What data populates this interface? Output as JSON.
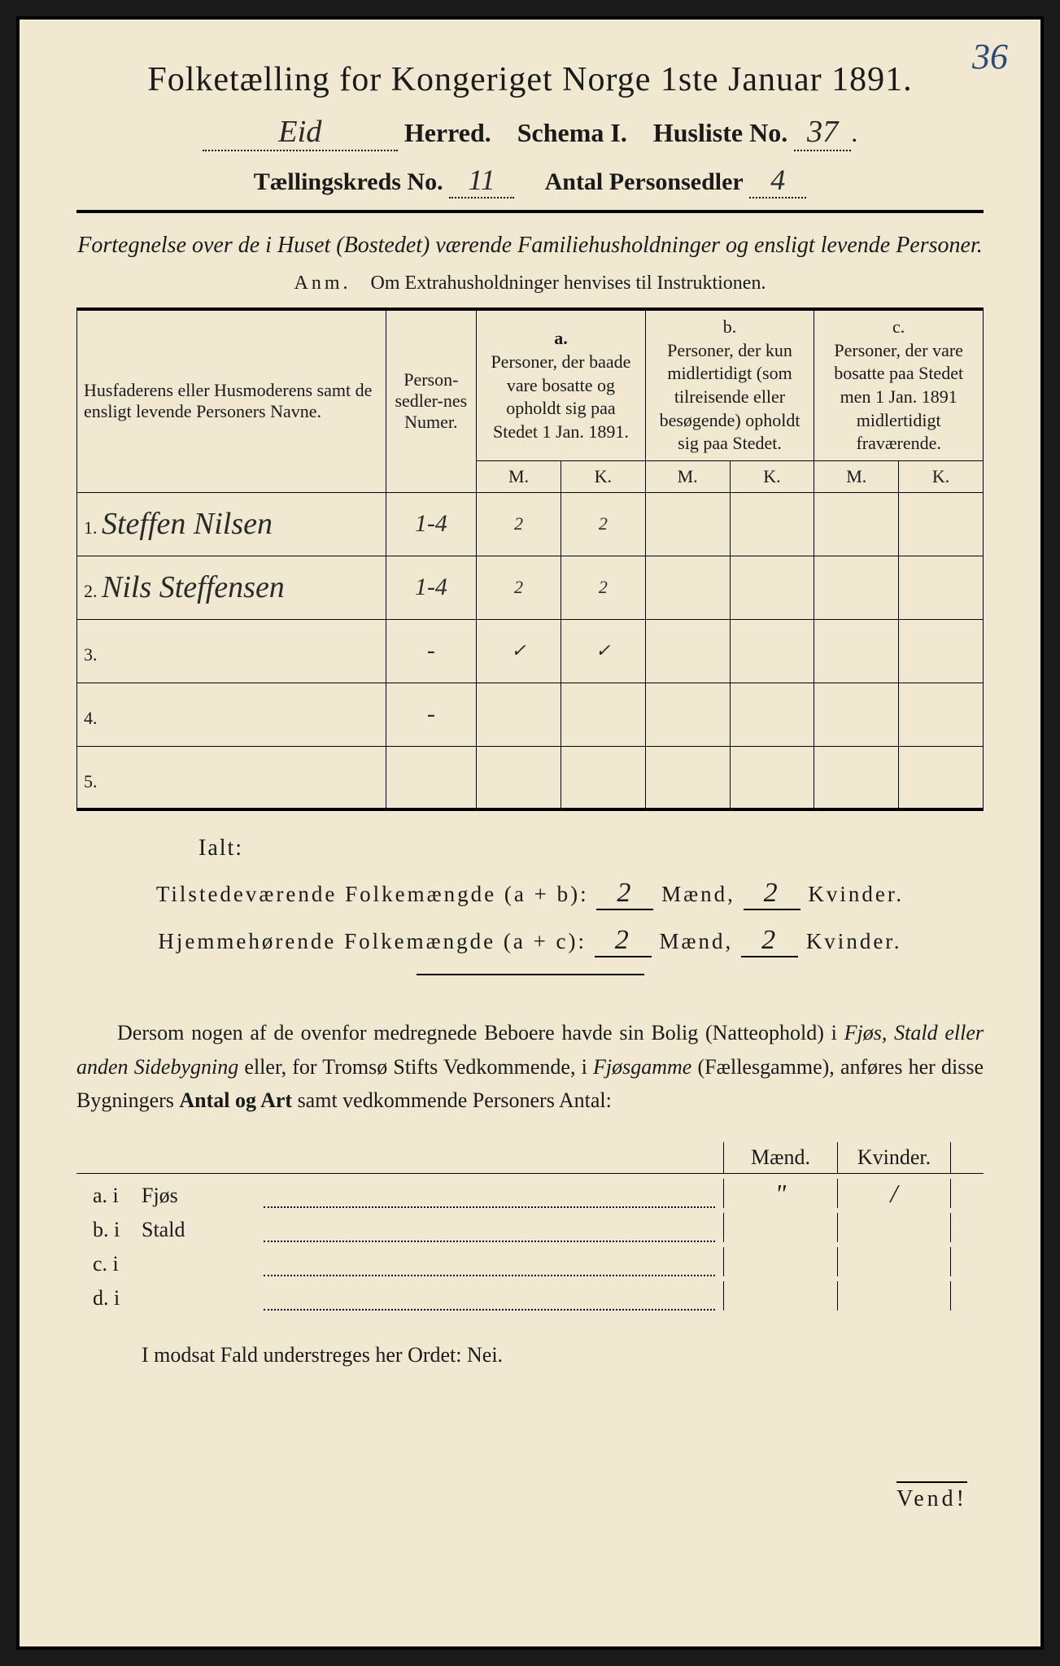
{
  "pageNumberHandwritten": "36",
  "title": "Folketælling for Kongeriget Norge 1ste Januar 1891.",
  "herredValue": "Eid",
  "herredLabel": "Herred.",
  "schemaLabel": "Schema I.",
  "huslisteLabel": "Husliste No.",
  "huslisteValue": "37",
  "kredsLabel": "Tællingskreds No.",
  "kredsValue": "11",
  "antalLabel": "Antal Personsedler",
  "antalValue": "4",
  "fortegnelse": "Fortegnelse over de i Huset (Bostedet) værende Familiehusholdninger og ensligt levende Personer.",
  "anmPrefix": "Anm.",
  "anmText": "Om Extrahusholdninger henvises til Instruktionen.",
  "headers": {
    "names": "Husfaderens eller Husmoderens samt de ensligt levende Personers Navne.",
    "numer": "Person-sedler-nes Numer.",
    "a_label": "a.",
    "a_text": "Personer, der baade vare bosatte og opholdt sig paa Stedet 1 Jan. 1891.",
    "b_label": "b.",
    "b_text": "Personer, der kun midlertidigt (som tilreisende eller besøgende) opholdt sig paa Stedet.",
    "c_label": "c.",
    "c_text": "Personer, der vare bosatte paa Stedet men 1 Jan. 1891 midlertidigt fraværende.",
    "M": "M.",
    "K": "K."
  },
  "rows": [
    {
      "n": "1.",
      "name": "Steffen Nilsen",
      "numer": "1-4",
      "aM": "2",
      "aK": "2",
      "bM": "",
      "bK": "",
      "cM": "",
      "cK": ""
    },
    {
      "n": "2.",
      "name": "Nils Steffensen",
      "numer": "1-4",
      "aM": "2",
      "aK": "2",
      "bM": "",
      "bK": "",
      "cM": "",
      "cK": ""
    },
    {
      "n": "3.",
      "name": "",
      "numer": "-",
      "aM": "✓",
      "aK": "✓",
      "bM": "",
      "bK": "",
      "cM": "",
      "cK": ""
    },
    {
      "n": "4.",
      "name": "",
      "numer": "-",
      "aM": "",
      "aK": "",
      "bM": "",
      "bK": "",
      "cM": "",
      "cK": ""
    },
    {
      "n": "5.",
      "name": "",
      "numer": "",
      "aM": "",
      "aK": "",
      "bM": "",
      "bK": "",
      "cM": "",
      "cK": ""
    }
  ],
  "ialt": "Ialt:",
  "sum1_label": "Tilstedeværende Folkemængde (a + b):",
  "sum1_m": "2",
  "sum1_k": "2",
  "sum2_label": "Hjemmehørende Folkemængde (a + c):",
  "sum2_m": "2",
  "sum2_k": "2",
  "maend": "Mænd,",
  "kvinder": "Kvinder.",
  "paragraph": {
    "p1": "Dersom nogen af de ovenfor medregnede Beboere havde sin Bolig (Natteophold) i ",
    "p2": "Fjøs, Stald eller anden Sidebygning",
    "p3": " eller, for Tromsø Stifts Vedkommende, i ",
    "p4": "Fjøsgamme",
    "p5": " (Fællesgamme), anføres her disse Bygningers ",
    "p6": "Antal og Art",
    "p7": " samt vedkommende Personers Antal:"
  },
  "dwellingHeader": {
    "m": "Mænd.",
    "k": "Kvinder."
  },
  "dwellings": [
    {
      "label": "a.  i",
      "name": "Fjøs",
      "m": "\"",
      "k": "/"
    },
    {
      "label": "b.  i",
      "name": "Stald",
      "m": "",
      "k": ""
    },
    {
      "label": "c.  i",
      "name": "",
      "m": "",
      "k": ""
    },
    {
      "label": "d.  i",
      "name": "",
      "m": "",
      "k": ""
    }
  ],
  "modsat": "I modsat Fald understreges her Ordet: Nei.",
  "vend": "Vend!"
}
